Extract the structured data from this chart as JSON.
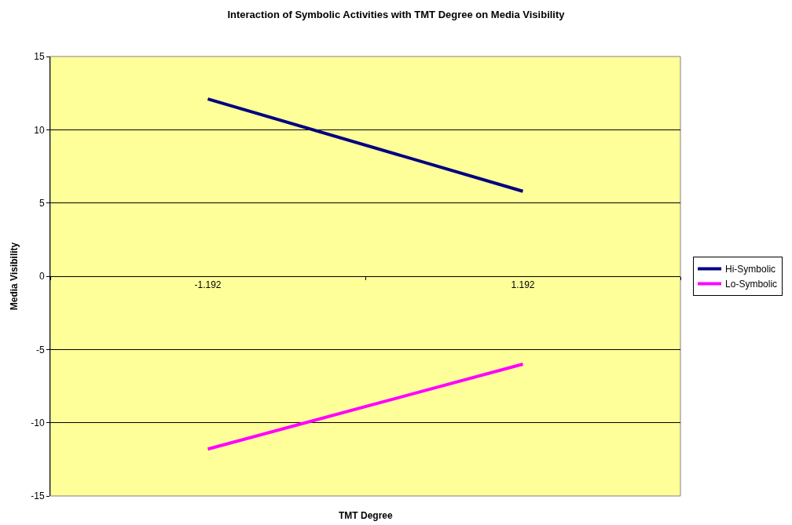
{
  "chart_data": {
    "type": "line",
    "title": "Interaction of Symbolic Activities with TMT Degree on Media Visibility",
    "xlabel": "TMT Degree",
    "ylabel": "Media Visibility",
    "categories": [
      "-1.192",
      "1.192"
    ],
    "series": [
      {
        "name": "Hi-Symbolic",
        "color": "#000080",
        "values": [
          12.1,
          5.8
        ]
      },
      {
        "name": "Lo-Symbolic",
        "color": "#ff00ff",
        "values": [
          -11.8,
          -6.0
        ]
      }
    ],
    "ylim": [
      -15,
      15
    ],
    "yticks": [
      -15,
      -10,
      -5,
      0,
      5,
      10,
      15
    ],
    "grid": "y",
    "legend": "right",
    "marker": "none",
    "line_style": "solid"
  }
}
